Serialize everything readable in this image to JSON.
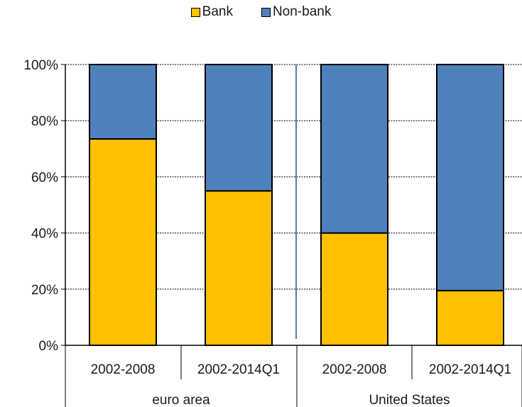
{
  "chart_data": {
    "type": "bar",
    "stacked": true,
    "percent_stacked": true,
    "groups": [
      {
        "name": "euro area",
        "categories": [
          "2002-2008",
          "2002-2014Q1"
        ]
      },
      {
        "name": "United States",
        "categories": [
          "2002-2008",
          "2002-2014Q1"
        ]
      }
    ],
    "categories": [
      "2002-2008",
      "2002-2014Q1",
      "2002-2008",
      "2002-2014Q1"
    ],
    "series": [
      {
        "name": "Bank",
        "color": "#FFC000",
        "values": [
          73.5,
          55,
          40,
          19.5
        ]
      },
      {
        "name": "Non-bank",
        "color": "#4F81BD",
        "values": [
          26.5,
          45,
          60,
          80.5
        ]
      }
    ],
    "ylim": [
      0,
      100
    ],
    "yticks": [
      "0%",
      "20%",
      "40%",
      "60%",
      "80%",
      "100%"
    ],
    "grid": true,
    "legend_position": "top-center",
    "title": "",
    "xlabel": "",
    "ylabel": ""
  }
}
